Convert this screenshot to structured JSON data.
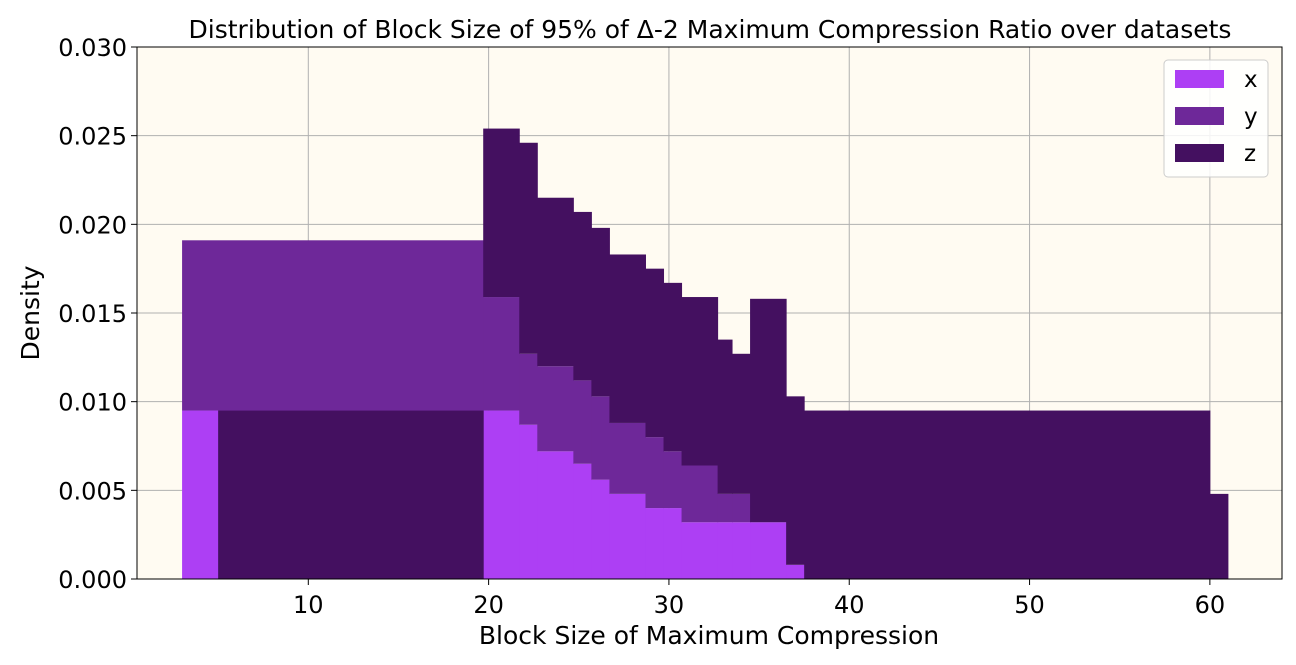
{
  "chart_data": {
    "type": "histogram",
    "title": "Distribution of Block Size of 95% of Δ-2 Maximum Compression Ratio over datasets",
    "xlabel": "Block Size of Maximum Compression",
    "ylabel": "Density",
    "xlim": [
      0.5,
      64
    ],
    "ylim": [
      0,
      0.03
    ],
    "xticks": [
      10,
      20,
      30,
      40,
      50,
      60
    ],
    "yticks": [
      0.0,
      0.005,
      0.01,
      0.015,
      0.02,
      0.025,
      0.03
    ],
    "ytick_labels": [
      "0.000",
      "0.005",
      "0.010",
      "0.015",
      "0.020",
      "0.025",
      "0.030"
    ],
    "grid": true,
    "background": "#fffbf2",
    "legend_position": "top-right",
    "stacked": true,
    "series": [
      {
        "name": "x",
        "color": "#ad3ff4",
        "bins": [
          {
            "x0": 3,
            "x1": 19.7,
            "density": 0.0095
          },
          {
            "x0": 19.7,
            "x1": 21.7,
            "density": 0.0095
          },
          {
            "x0": 21.7,
            "x1": 22.7,
            "density": 0.0087
          },
          {
            "x0": 22.7,
            "x1": 24.7,
            "density": 0.0072
          },
          {
            "x0": 24.7,
            "x1": 25.7,
            "density": 0.0065
          },
          {
            "x0": 25.7,
            "x1": 26.7,
            "density": 0.0056
          },
          {
            "x0": 26.7,
            "x1": 28.7,
            "density": 0.0048
          },
          {
            "x0": 28.7,
            "x1": 29.7,
            "density": 0.004
          },
          {
            "x0": 29.7,
            "x1": 30.7,
            "density": 0.004
          },
          {
            "x0": 30.7,
            "x1": 32.7,
            "density": 0.0032
          },
          {
            "x0": 32.7,
            "x1": 33.5,
            "density": 0.0032
          },
          {
            "x0": 33.5,
            "x1": 34.5,
            "density": 0.0032
          },
          {
            "x0": 34.5,
            "x1": 36.5,
            "density": 0.0032
          },
          {
            "x0": 36.5,
            "x1": 37.5,
            "density": 0.0008
          }
        ]
      },
      {
        "name": "y",
        "color": "#6e2899",
        "bins": [
          {
            "x0": 3,
            "x1": 19.7,
            "density": 0.0096
          },
          {
            "x0": 19.7,
            "x1": 21.7,
            "density": 0.0064
          },
          {
            "x0": 21.7,
            "x1": 22.7,
            "density": 0.004
          },
          {
            "x0": 22.7,
            "x1": 24.7,
            "density": 0.0048
          },
          {
            "x0": 24.7,
            "x1": 25.7,
            "density": 0.0047
          },
          {
            "x0": 25.7,
            "x1": 26.7,
            "density": 0.0047
          },
          {
            "x0": 26.7,
            "x1": 28.7,
            "density": 0.004
          },
          {
            "x0": 28.7,
            "x1": 29.7,
            "density": 0.004
          },
          {
            "x0": 29.7,
            "x1": 30.7,
            "density": 0.0032
          },
          {
            "x0": 30.7,
            "x1": 32.7,
            "density": 0.0032
          },
          {
            "x0": 32.7,
            "x1": 33.5,
            "density": 0.0016
          },
          {
            "x0": 33.5,
            "x1": 34.5,
            "density": 0.0016
          }
        ]
      },
      {
        "name": "z",
        "color": "#441060",
        "bins": [
          {
            "x0": 5,
            "x1": 19.7,
            "density": 0.0095
          },
          {
            "x0": 19.7,
            "x1": 21.7,
            "density": 0.0095
          },
          {
            "x0": 21.7,
            "x1": 22.7,
            "density": 0.0119
          },
          {
            "x0": 22.7,
            "x1": 24.7,
            "density": 0.0095
          },
          {
            "x0": 24.7,
            "x1": 25.7,
            "density": 0.0095
          },
          {
            "x0": 25.7,
            "x1": 26.7,
            "density": 0.0095
          },
          {
            "x0": 26.7,
            "x1": 28.7,
            "density": 0.0095
          },
          {
            "x0": 28.7,
            "x1": 29.7,
            "density": 0.0095
          },
          {
            "x0": 29.7,
            "x1": 30.7,
            "density": 0.0095
          },
          {
            "x0": 30.7,
            "x1": 32.7,
            "density": 0.0095
          },
          {
            "x0": 32.7,
            "x1": 33.5,
            "density": 0.0087
          },
          {
            "x0": 33.5,
            "x1": 34.5,
            "density": 0.0079
          },
          {
            "x0": 34.5,
            "x1": 36.5,
            "density": 0.0126
          },
          {
            "x0": 36.5,
            "x1": 37.5,
            "density": 0.0095
          },
          {
            "x0": 37.5,
            "x1": 60,
            "density": 0.0095
          },
          {
            "x0": 60,
            "x1": 61,
            "density": 0.0048
          }
        ]
      }
    ]
  }
}
